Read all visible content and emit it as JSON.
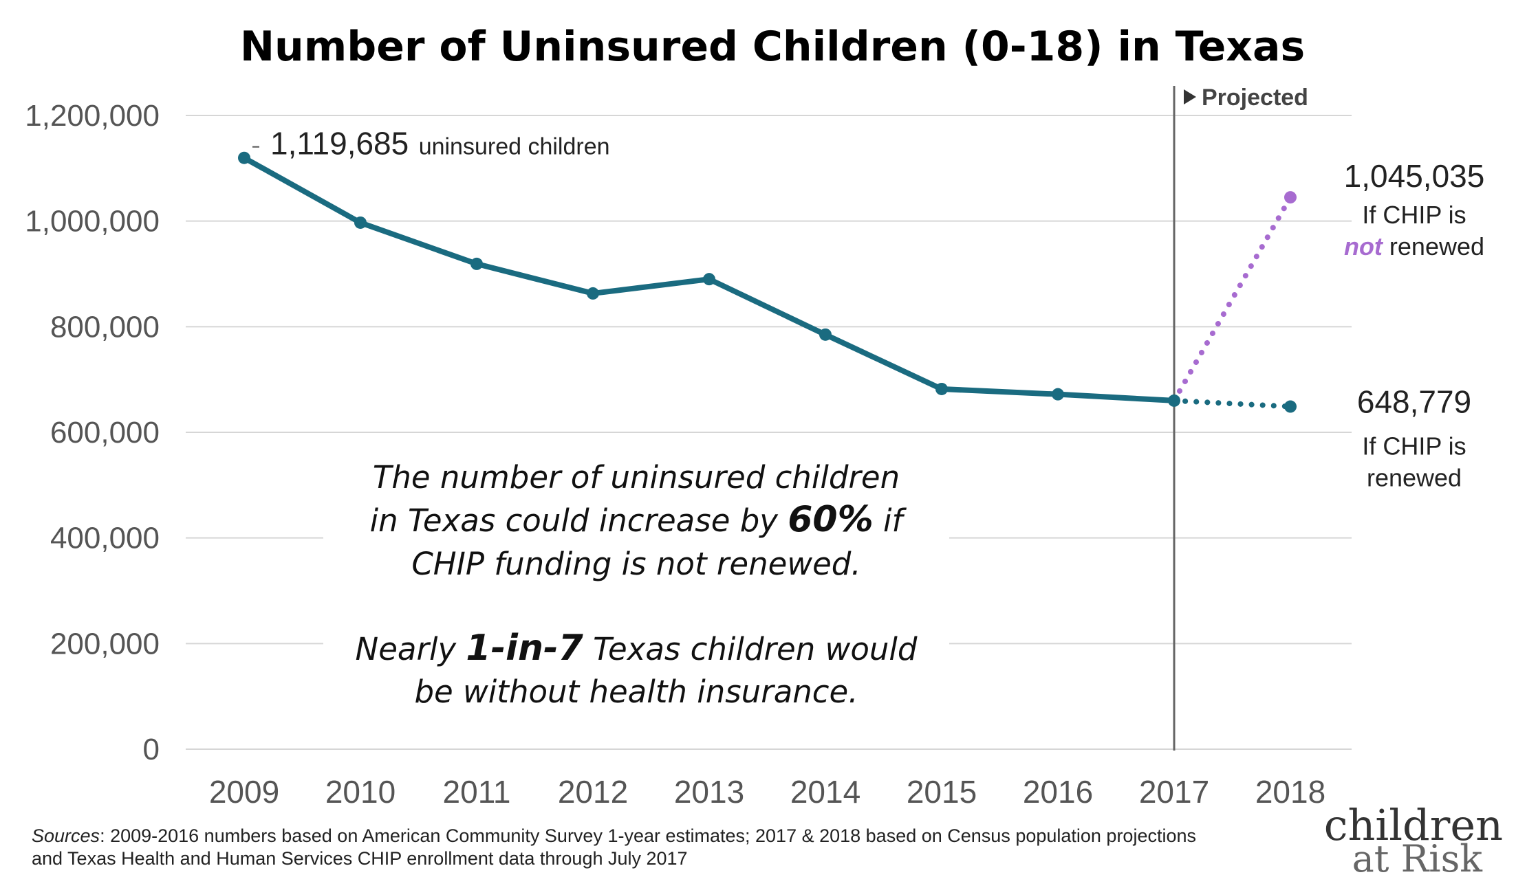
{
  "colors": {
    "main_series": "#1a6b80",
    "not_renewed": "#a76bd0",
    "gridline": "#d6d6d6",
    "axis_text": "#555555",
    "projection_line": "#666666"
  },
  "chart_data": {
    "type": "line",
    "title": "Number of Uninsured Children (0-18) in Texas",
    "xlabel": "",
    "ylabel": "",
    "categories": [
      "2009",
      "2010",
      "2011",
      "2012",
      "2013",
      "2014",
      "2015",
      "2016",
      "2017",
      "2018"
    ],
    "ylim": [
      0,
      1200000
    ],
    "yticks": [
      0,
      200000,
      400000,
      600000,
      800000,
      1000000,
      1200000
    ],
    "ytick_labels": [
      "0",
      "200,000",
      "400,000",
      "600,000",
      "800,000",
      "1,000,000",
      "1,200,000"
    ],
    "grid": true,
    "series": [
      {
        "name": "Uninsured children",
        "style": "solid",
        "x": [
          "2009",
          "2010",
          "2011",
          "2012",
          "2013",
          "2014",
          "2015",
          "2016",
          "2017"
        ],
        "values": [
          1119685,
          997000,
          919000,
          863000,
          890000,
          785000,
          682000,
          672000,
          660000
        ]
      },
      {
        "name": "If CHIP is renewed",
        "style": "dotted",
        "x": [
          "2017",
          "2018"
        ],
        "values": [
          660000,
          648779
        ]
      },
      {
        "name": "If CHIP is not renewed",
        "style": "dotted",
        "x": [
          "2017",
          "2018"
        ],
        "values": [
          660000,
          1045035
        ]
      }
    ],
    "projection_marker": {
      "at": "2017",
      "label": "Projected"
    },
    "annotations": {
      "start_value": "1,119,685",
      "start_suffix": "uninsured children",
      "not_renewed_value": "1,045,035",
      "not_renewed_line1": "If CHIP is",
      "not_renewed_emph": "not",
      "not_renewed_rest": " renewed",
      "renewed_value": "648,779",
      "renewed_line1": "If CHIP is",
      "renewed_line2": "renewed",
      "callout_1a": "The number of uninsured children",
      "callout_1b_pre": "in Texas could increase by ",
      "callout_1b_emph": "60%",
      "callout_1b_post": " if",
      "callout_1c": "CHIP funding is not renewed.",
      "callout_2a_pre": "Nearly ",
      "callout_2a_emph": "1-in-7",
      "callout_2a_post": " Texas children would",
      "callout_2b": "be without health insurance."
    }
  },
  "footer": {
    "sources_label": "Sources",
    "sources_line1": ": 2009-2016 numbers based on American Community Survey 1-year estimates; 2017 & 2018 based on Census population projections",
    "sources_line2": "and Texas Health and Human Services CHIP enrollment data through July 2017"
  },
  "logo": {
    "line1": "children",
    "line2": "at Risk"
  }
}
